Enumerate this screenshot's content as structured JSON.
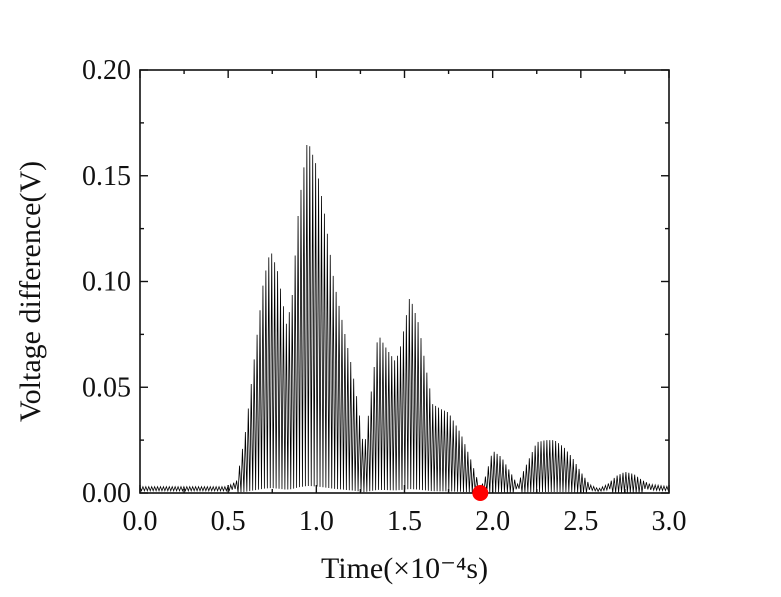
{
  "chart_data": {
    "type": "line",
    "xlabel": "Time(×10⁻⁴s)",
    "ylabel": "Voltage difference(V)",
    "xlim": [
      0.0,
      3.0
    ],
    "ylim": [
      0.0,
      0.2
    ],
    "xticks": [
      "0.0",
      "0.5",
      "1.0",
      "1.5",
      "2.0",
      "2.5",
      "3.0"
    ],
    "yticks": [
      "0.00",
      "0.05",
      "0.10",
      "0.15",
      "0.20"
    ],
    "grid": false,
    "legend": "none",
    "series": [
      {
        "color": "#000000",
        "oscillation_period": 0.0166,
        "envelope": [
          [
            0.0,
            0.003
          ],
          [
            0.2,
            0.003
          ],
          [
            0.5,
            0.003
          ],
          [
            0.55,
            0.006
          ],
          [
            0.6,
            0.03
          ],
          [
            0.65,
            0.065
          ],
          [
            0.7,
            0.1
          ],
          [
            0.74,
            0.115
          ],
          [
            0.78,
            0.105
          ],
          [
            0.83,
            0.08
          ],
          [
            0.86,
            0.09
          ],
          [
            0.9,
            0.135
          ],
          [
            0.95,
            0.167
          ],
          [
            1.0,
            0.155
          ],
          [
            1.05,
            0.13
          ],
          [
            1.1,
            0.1
          ],
          [
            1.15,
            0.08
          ],
          [
            1.2,
            0.06
          ],
          [
            1.24,
            0.04
          ],
          [
            1.27,
            0.02
          ],
          [
            1.3,
            0.04
          ],
          [
            1.35,
            0.075
          ],
          [
            1.4,
            0.068
          ],
          [
            1.45,
            0.062
          ],
          [
            1.48,
            0.07
          ],
          [
            1.53,
            0.093
          ],
          [
            1.58,
            0.08
          ],
          [
            1.62,
            0.06
          ],
          [
            1.66,
            0.042
          ],
          [
            1.7,
            0.04
          ],
          [
            1.75,
            0.038
          ],
          [
            1.82,
            0.028
          ],
          [
            1.88,
            0.015
          ],
          [
            1.93,
            0.002
          ],
          [
            1.96,
            0.008
          ],
          [
            2.0,
            0.02
          ],
          [
            2.05,
            0.017
          ],
          [
            2.1,
            0.01
          ],
          [
            2.14,
            0.004
          ],
          [
            2.2,
            0.015
          ],
          [
            2.25,
            0.024
          ],
          [
            2.3,
            0.025
          ],
          [
            2.35,
            0.025
          ],
          [
            2.4,
            0.022
          ],
          [
            2.45,
            0.017
          ],
          [
            2.5,
            0.01
          ],
          [
            2.55,
            0.004
          ],
          [
            2.6,
            0.002
          ],
          [
            2.65,
            0.004
          ],
          [
            2.7,
            0.008
          ],
          [
            2.75,
            0.01
          ],
          [
            2.8,
            0.009
          ],
          [
            2.85,
            0.006
          ],
          [
            2.9,
            0.004
          ],
          [
            3.0,
            0.003
          ]
        ]
      }
    ],
    "marker": {
      "x": 1.93,
      "y": 0.0,
      "color": "#ff0000"
    }
  }
}
